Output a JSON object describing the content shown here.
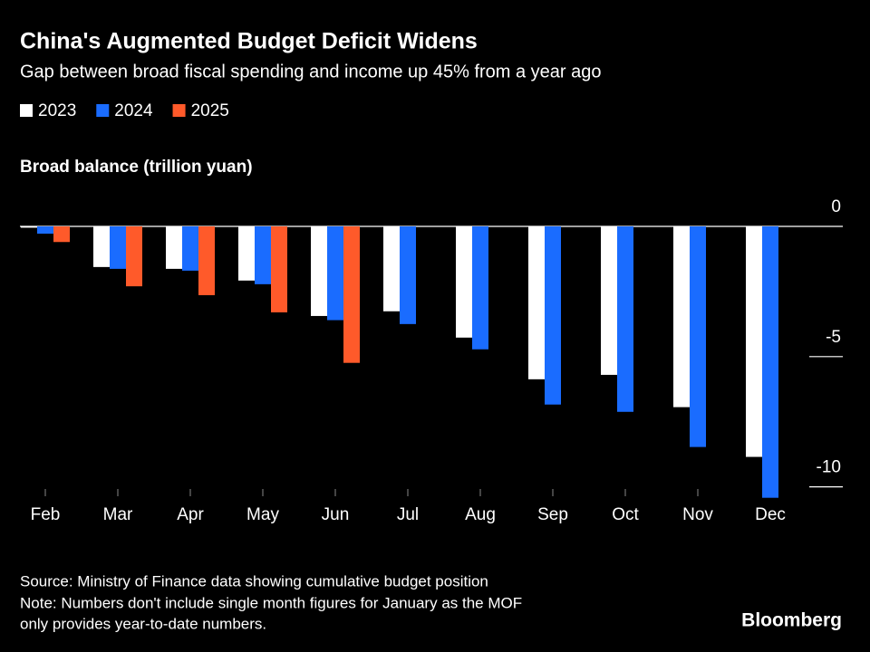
{
  "chart_data": {
    "type": "bar",
    "title": "China's Augmented Budget Deficit Widens",
    "subtitle": "Gap between broad fiscal spending and income up 45% from a year ago",
    "y_label": "Broad balance (trillion yuan)",
    "categories": [
      "Feb",
      "Mar",
      "Apr",
      "May",
      "Jun",
      "Jul",
      "Aug",
      "Sep",
      "Oct",
      "Nov",
      "Dec"
    ],
    "series": [
      {
        "name": "2023",
        "color": "#ffffff",
        "values": [
          -0.05,
          -1.56,
          -1.63,
          -2.08,
          -3.44,
          -3.26,
          -4.27,
          -5.87,
          -5.7,
          -6.94,
          -8.85
        ]
      },
      {
        "name": "2024",
        "color": "#1a6cff",
        "values": [
          -0.28,
          -1.63,
          -1.7,
          -2.22,
          -3.6,
          -3.75,
          -4.72,
          -6.84,
          -7.12,
          -8.47,
          -10.42
        ]
      },
      {
        "name": "2025",
        "color": "#ff5a2a",
        "values": [
          -0.6,
          -2.3,
          -2.64,
          -3.3,
          -5.24,
          null,
          null,
          null,
          null,
          null,
          null
        ]
      }
    ],
    "ylim": [
      -10.5,
      0
    ],
    "yticks": [
      0,
      -5,
      -10
    ],
    "source": "Source: Ministry of Finance data showing cumulative budget position",
    "note": "Note: Numbers don't include single month figures for January as the MOF",
    "note2": "only provides year-to-date numbers.",
    "brand": "Bloomberg"
  }
}
